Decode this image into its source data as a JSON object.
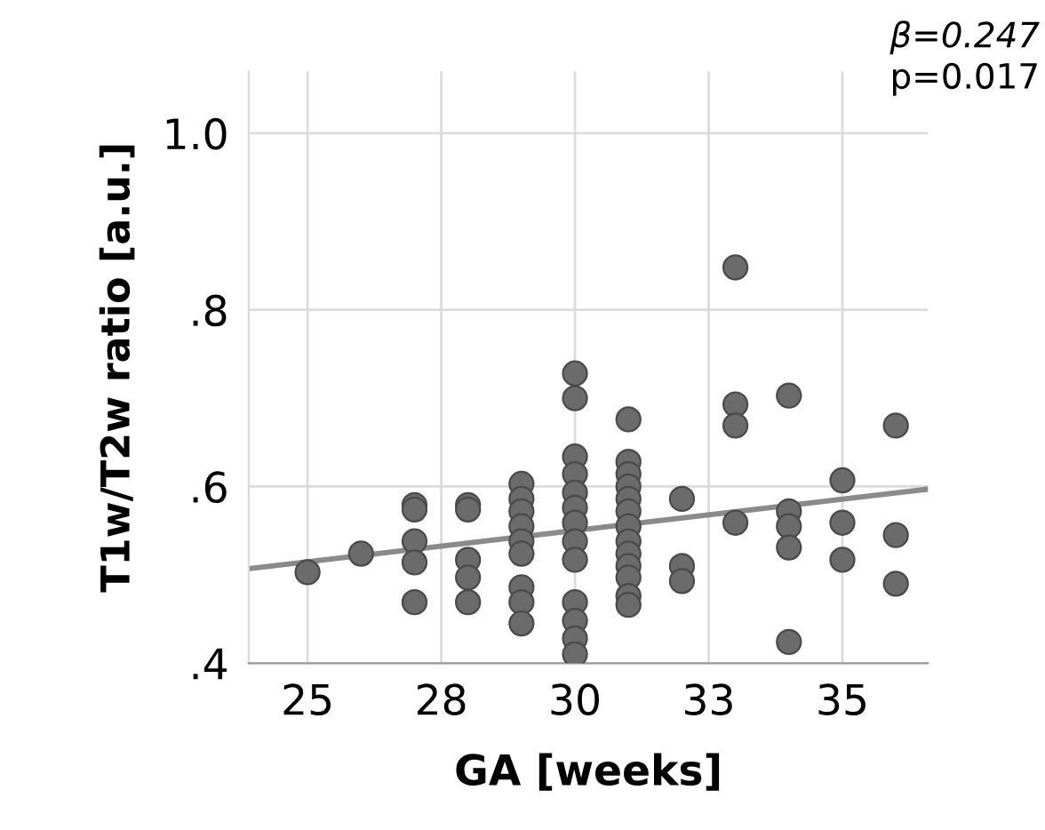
{
  "chart_data": {
    "type": "scatter",
    "xlabel": "GA [weeks]",
    "ylabel": "T1w/T2w ratio [a.u.]",
    "annotations": [
      "β=0.247",
      "p=0.017"
    ],
    "xlim": [
      23.9,
      36.6
    ],
    "ylim": [
      0.4,
      1.07
    ],
    "xticks": [
      25,
      {
        "value": 27.5,
        "label": "28"
      },
      30,
      {
        "value": 32.5,
        "label": "33"
      },
      35
    ],
    "yticks": [
      {
        "value": 0.4,
        "label": ".4"
      },
      {
        "value": 0.6,
        "label": ".6"
      },
      {
        "value": 0.8,
        "label": ".8"
      },
      {
        "value": 1.0,
        "label": "1.0"
      }
    ],
    "grid": true,
    "series": [
      {
        "marker": "circle",
        "color": "#6b6b6b",
        "x": [
          25,
          26,
          27,
          27,
          27,
          27,
          27,
          28,
          28,
          28,
          28,
          28,
          29,
          29,
          29,
          29,
          29,
          29,
          29,
          29,
          29,
          30,
          30,
          30,
          30,
          30,
          30,
          30,
          30,
          30,
          30,
          30,
          30,
          30,
          31,
          31,
          31,
          31,
          31,
          31,
          31,
          31,
          31,
          31,
          31,
          31,
          31,
          32,
          32,
          32,
          33,
          33,
          33,
          33,
          34,
          34,
          34,
          34,
          34,
          35,
          35,
          35,
          36,
          36,
          36
        ],
        "values": [
          0.503,
          0.524,
          0.579,
          0.574,
          0.538,
          0.514,
          0.469,
          0.579,
          0.574,
          0.517,
          0.497,
          0.469,
          0.603,
          0.586,
          0.572,
          0.555,
          0.538,
          0.524,
          0.486,
          0.469,
          0.445,
          0.728,
          0.7,
          0.634,
          0.614,
          0.593,
          0.576,
          0.559,
          0.538,
          0.517,
          0.469,
          0.448,
          0.428,
          0.41,
          0.676,
          0.628,
          0.614,
          0.6,
          0.586,
          0.572,
          0.555,
          0.538,
          0.524,
          0.51,
          0.497,
          0.476,
          0.466,
          0.586,
          0.51,
          0.493,
          0.848,
          0.693,
          0.669,
          0.559,
          0.703,
          0.572,
          0.555,
          0.531,
          0.424,
          0.607,
          0.559,
          0.517,
          0.669,
          0.545,
          0.49
        ]
      },
      {
        "type": "line",
        "marker": "none",
        "color": "#8a8a8a",
        "x": [
          23.9,
          36.6
        ],
        "values": [
          0.507,
          0.597
        ]
      }
    ]
  }
}
